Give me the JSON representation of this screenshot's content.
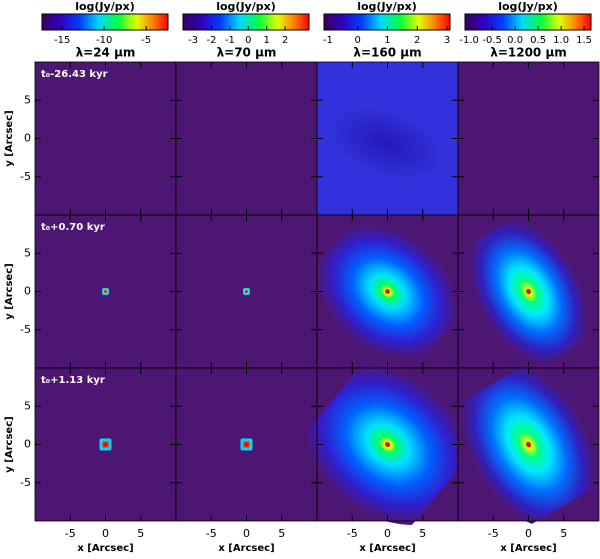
{
  "colorbars": [
    {
      "label": "log(Jy/px)",
      "range": [
        -17.4,
        -2.4
      ],
      "ticks": [
        -15,
        -10,
        -5
      ]
    },
    {
      "label": "log(Jy/px)",
      "range": [
        -3.55,
        3.3
      ],
      "ticks": [
        -3,
        -2,
        -1,
        0,
        1,
        2
      ]
    },
    {
      "label": "log(Jy/px)",
      "range": [
        -1.13,
        3.1
      ],
      "ticks": [
        -1,
        0,
        1,
        2,
        3
      ]
    },
    {
      "label": "log(Jy/px)",
      "range": [
        -1.09,
        1.65
      ],
      "ticks": [
        {
          "value": -1,
          "label": "-1.0"
        },
        -0.5,
        {
          "value": 0,
          "label": "0.0"
        },
        0.5,
        {
          "value": 1,
          "label": "1.0"
        },
        1.5
      ]
    }
  ],
  "columns": [
    "λ=24 μm",
    "λ=70 μm",
    "λ=160 μm",
    "λ=1200 μm"
  ],
  "rows": [
    "t₀-26.43 kyr",
    "t₀+0.70 kyr",
    "t₀+1.13 kyr"
  ],
  "x_axis": {
    "label": "x [Arcsec]",
    "range": [
      -10,
      10
    ],
    "ticks": [
      -5,
      0,
      5
    ]
  },
  "y_axis": {
    "label": "y [Arcsec]",
    "range": [
      -10,
      10
    ],
    "ticks": [
      5,
      0,
      -5
    ]
  }
}
